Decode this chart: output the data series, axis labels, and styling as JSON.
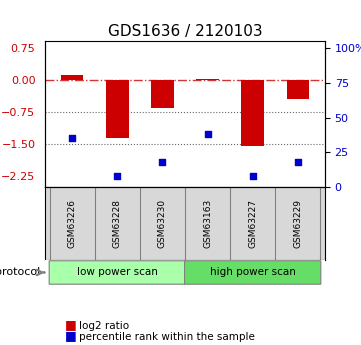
{
  "title": "GDS1636 / 2120103",
  "samples": [
    "GSM63226",
    "GSM63228",
    "GSM63230",
    "GSM63163",
    "GSM63227",
    "GSM63229"
  ],
  "log2_ratio": [
    0.12,
    -1.35,
    -0.65,
    0.02,
    -1.55,
    -0.45
  ],
  "percentile_rank": [
    35,
    8,
    18,
    38,
    8,
    18
  ],
  "ylim_left": [
    -2.5,
    0.9
  ],
  "ylim_right": [
    0,
    105
  ],
  "yticks_left": [
    0.75,
    0,
    -0.75,
    -1.5,
    -2.25
  ],
  "yticks_right": [
    100,
    75,
    50,
    25,
    0
  ],
  "hlines": [
    0,
    -0.75,
    -1.5
  ],
  "bar_color": "#cc0000",
  "dot_color": "#0000cc",
  "bar_width": 0.5,
  "protocols": [
    "low power scan",
    "low power scan",
    "low power scan",
    "high power scan",
    "high power scan",
    "high power scan"
  ],
  "protocol_colors": [
    "#aaffaa",
    "#66ee66"
  ],
  "protocol_label": "protocol",
  "legend_bar": "log2 ratio",
  "legend_dot": "percentile rank within the sample",
  "bg_color": "#ffffff",
  "grid_color": "#cccccc",
  "xlabel_rotation": 90,
  "right_axis_color": "#0000cc",
  "left_axis_color": "#cc0000"
}
